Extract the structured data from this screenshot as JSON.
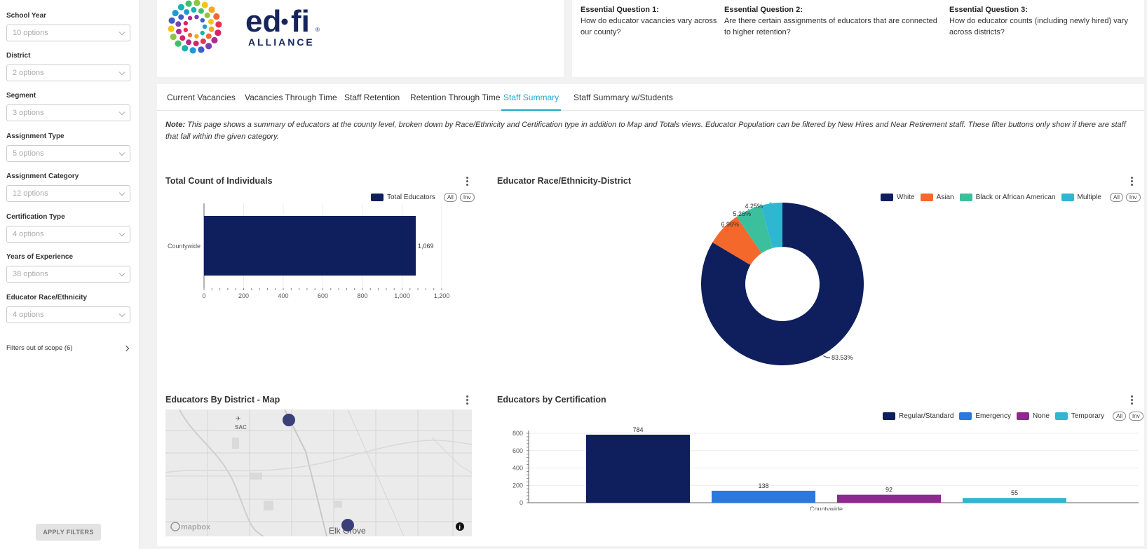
{
  "sidebar": {
    "filters": [
      {
        "label": "School Year",
        "value": "10 options"
      },
      {
        "label": "District",
        "value": "2 options"
      },
      {
        "label": "Segment",
        "value": "3 options"
      },
      {
        "label": "Assignment Type",
        "value": "5 options"
      },
      {
        "label": "Assignment Category",
        "value": "12 options"
      },
      {
        "label": "Certification Type",
        "value": "4 options"
      },
      {
        "label": "Years of Experience",
        "value": "38 options"
      },
      {
        "label": "Educator Race/Ethnicity",
        "value": "4 options"
      }
    ],
    "scope_label": "Filters out of scope (6)",
    "apply_label": "APPLY FILTERS"
  },
  "logo": {
    "word_left": "ed",
    "word_right": "fi",
    "sub": "ALLIANCE",
    "reg": "®"
  },
  "questions": [
    {
      "title": "Essential Question 1:",
      "text": "How do educator vacancies vary across our county?"
    },
    {
      "title": "Essential Question 2:",
      "text": "Are there certain assignments of educators that are connected to higher retention?"
    },
    {
      "title": "Essential Question 3:",
      "text": "How do educator counts (including newly hired) vary across districts?"
    }
  ],
  "tabs": [
    {
      "label": "Current Vacancies",
      "active": false
    },
    {
      "label": "Vacancies Through Time",
      "active": false
    },
    {
      "label": "Staff Retention",
      "active": false
    },
    {
      "label": "Retention Through Time",
      "active": false
    },
    {
      "label": "Staff Summary",
      "active": true
    },
    {
      "label": "Staff Summary w/Students",
      "active": false
    }
  ],
  "note": {
    "prefix": "Note:",
    "text": " This page shows a summary of educators at the county level, broken down by Race/Ethnicity and Certification type in addition to Map and Totals views. Educator Population can be filtered by New Hires and Near Retirement staff. These filter buttons only show if there are staff that fall within the given category."
  },
  "legend_controls": {
    "all": "All",
    "inv": "Inv"
  },
  "map": {
    "title": "Educators By District - Map",
    "place_label_1": "SAC",
    "place_label_2": "Elk Grove",
    "attribution": "mapbox",
    "info": "i"
  },
  "chart_data": [
    {
      "type": "bar",
      "orientation": "horizontal",
      "title": "Total Count of Individuals",
      "categories": [
        "Countywide"
      ],
      "series": [
        {
          "name": "Total Educators",
          "values": [
            1069
          ],
          "color": "#0f1e5c"
        }
      ],
      "value_labels": [
        "1,069"
      ],
      "xlim": [
        0,
        1200
      ],
      "ticks": [
        "0",
        "200",
        "400",
        "600",
        "800",
        "1,000",
        "1,200"
      ],
      "grid": true,
      "legend": "top-right"
    },
    {
      "type": "pie",
      "donut": true,
      "title": "Educator Race/Ethnicity-District",
      "slices": [
        {
          "name": "White",
          "value": 83.53,
          "label": "83.53%",
          "color": "#0f1e5c"
        },
        {
          "name": "Asian",
          "value": 6.96,
          "label": "6.96%",
          "color": "#f5682b"
        },
        {
          "name": "Black or African American",
          "value": 5.26,
          "label": "5.26%",
          "color": "#3cbf9c"
        },
        {
          "name": "Multiple",
          "value": 4.25,
          "label": "4.25%",
          "color": "#2fb7d1"
        }
      ],
      "legend": "top-right"
    },
    {
      "type": "bar",
      "title": "Educators by Certification",
      "categories": [
        "Countywide"
      ],
      "series": [
        {
          "name": "Regular/Standard",
          "values": [
            784
          ],
          "color": "#0f1e5c"
        },
        {
          "name": "Emergency",
          "values": [
            138
          ],
          "color": "#2a78e0"
        },
        {
          "name": "None",
          "values": [
            92
          ],
          "color": "#8e2a8f"
        },
        {
          "name": "Temporary",
          "values": [
            55
          ],
          "color": "#2fb7d1"
        }
      ],
      "ylim": [
        0,
        800
      ],
      "ticks": [
        "0",
        "200",
        "400",
        "600",
        "800"
      ],
      "grid": true,
      "legend": "top-right"
    }
  ]
}
